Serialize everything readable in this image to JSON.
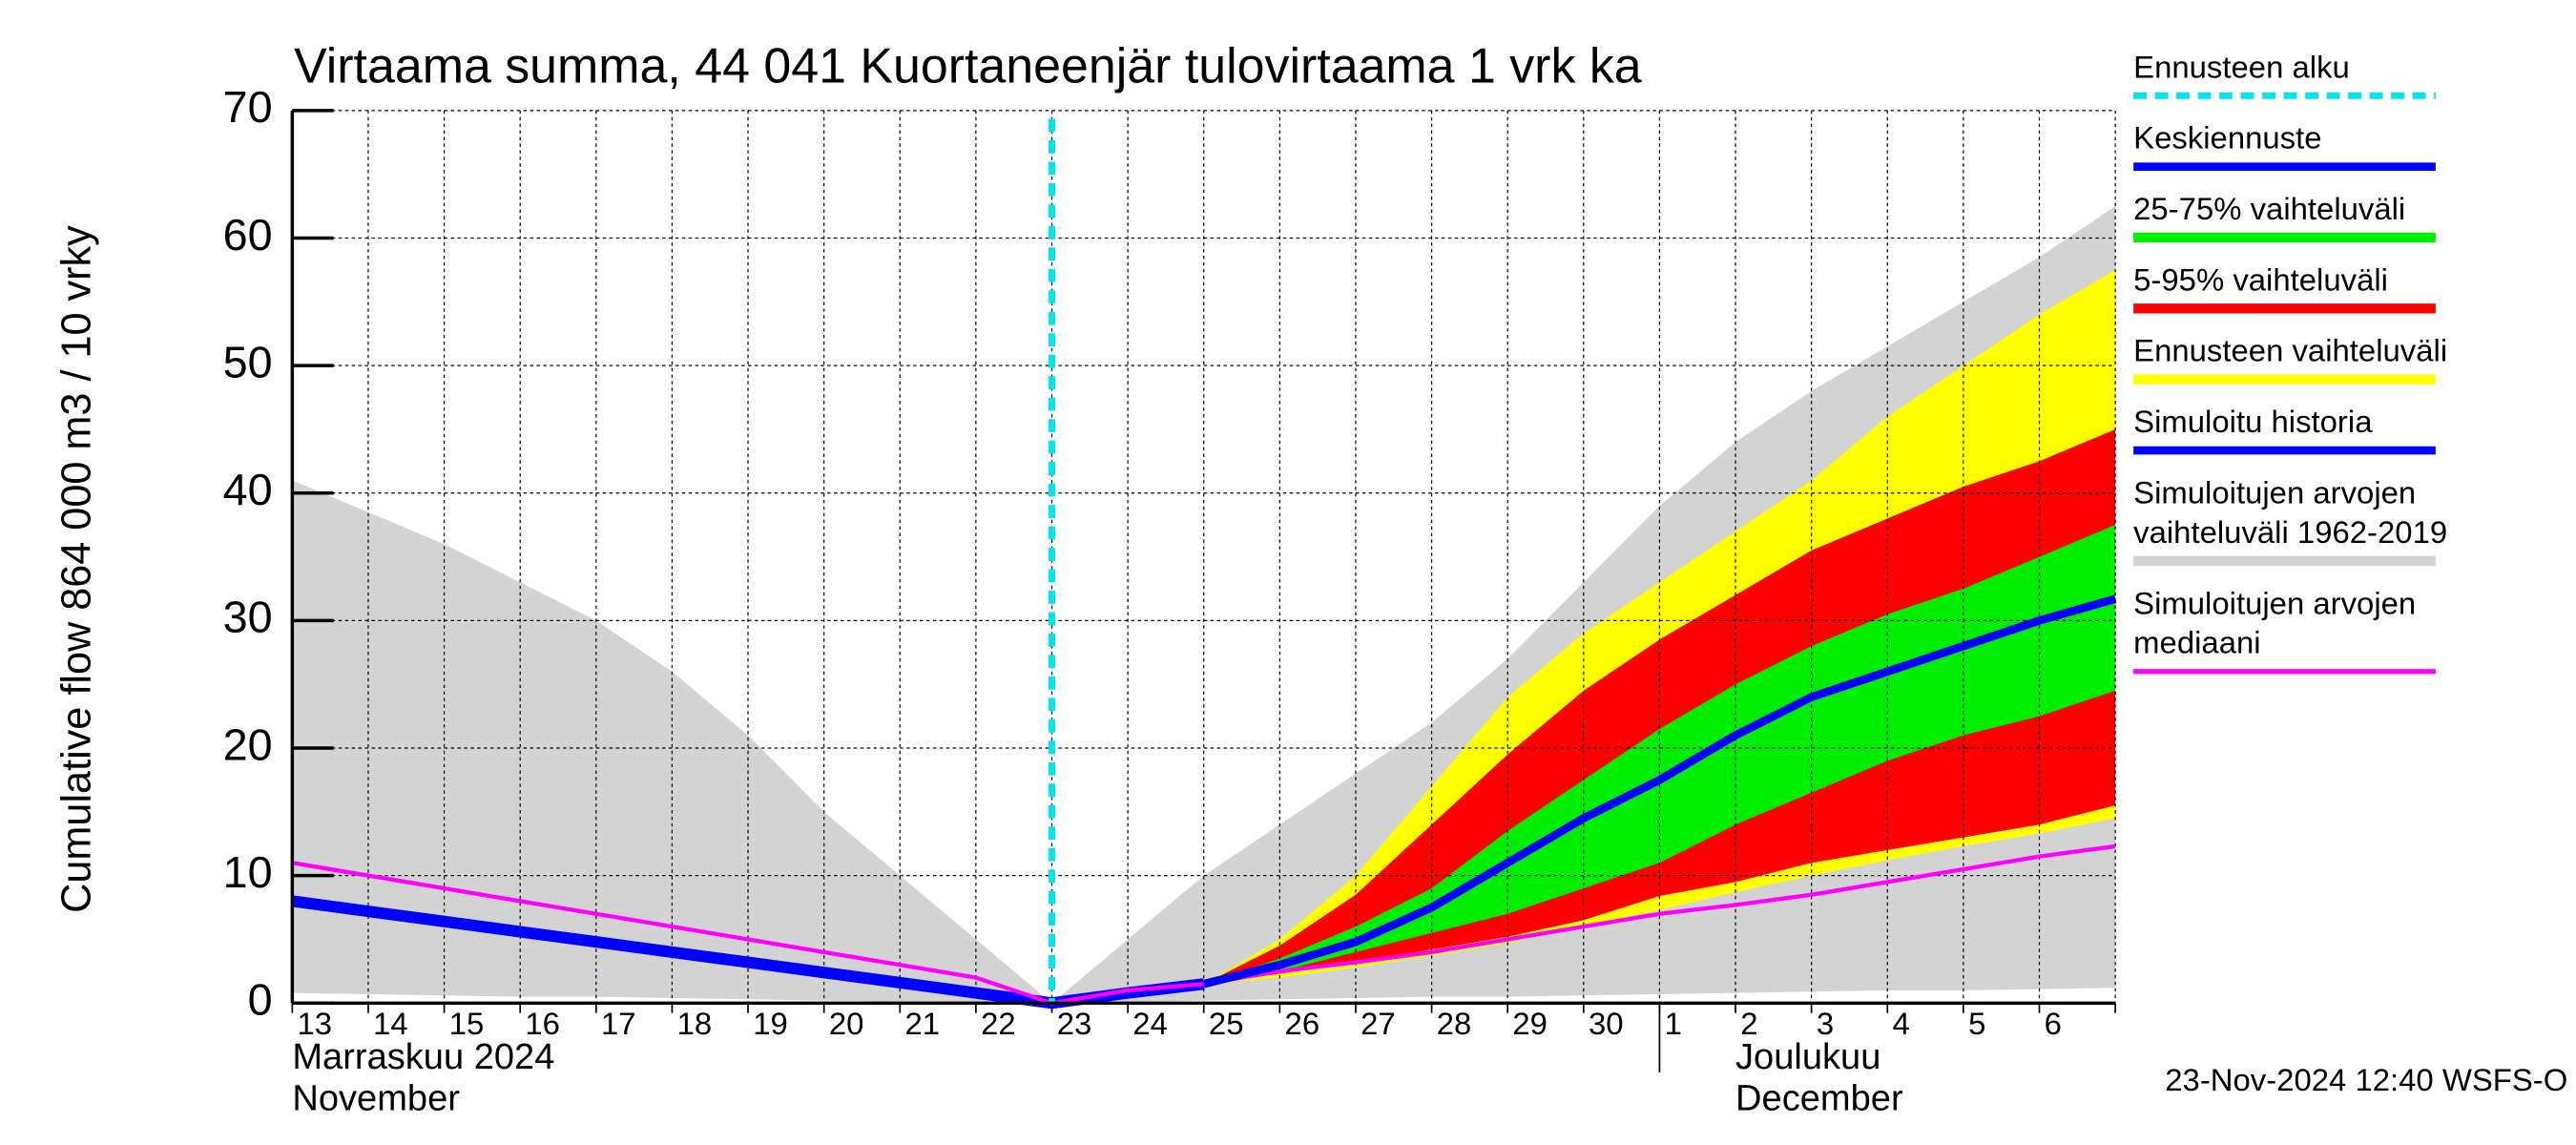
{
  "chart_data": {
    "type": "band",
    "title": "Virtaama summa, 44 041 Kuortaneenjär tulovirtaama 1 vrk ka",
    "ylabel": "Cumulative flow    864 000 m3 / 10 vrky",
    "footer": "23-Nov-2024 12:40 WSFS-O",
    "categories": [
      "13",
      "14",
      "15",
      "16",
      "17",
      "18",
      "19",
      "20",
      "21",
      "22",
      "23",
      "24",
      "25",
      "26",
      "27",
      "28",
      "29",
      "30",
      "1",
      "2",
      "3",
      "4",
      "5",
      "6",
      null
    ],
    "months": [
      {
        "label": [
          "Marraskuu 2024",
          "November"
        ],
        "at": "13"
      },
      {
        "label": [
          "Joulukuu",
          "December"
        ],
        "at": "2"
      }
    ],
    "ylim": [
      0,
      70
    ],
    "yticks": [
      0,
      10,
      20,
      30,
      40,
      50,
      60,
      70
    ],
    "grid": true,
    "markers": [
      {
        "name": "Ennusteen alku",
        "color": "#00e5ee",
        "at": "23"
      }
    ],
    "series": [
      {
        "name": [
          "Keskiennuste"
        ],
        "color": "#0000ff",
        "values": [
          null,
          null,
          null,
          null,
          null,
          null,
          null,
          null,
          null,
          null,
          null,
          null,
          1.5,
          3,
          4.8,
          7.5,
          11,
          14.5,
          17.5,
          21,
          24,
          26,
          28,
          30,
          31.7
        ]
      },
      {
        "name": [
          "25-75% vaihteluväli"
        ],
        "color": "#00ee00",
        "upper": [
          null,
          null,
          null,
          null,
          null,
          null,
          null,
          null,
          null,
          null,
          null,
          null,
          1.5,
          3.5,
          6,
          9,
          13.5,
          17.5,
          21.5,
          25,
          28,
          30.5,
          32.5,
          35,
          37.5
        ],
        "lower": [
          null,
          null,
          null,
          null,
          null,
          null,
          null,
          null,
          null,
          null,
          null,
          null,
          1.5,
          2.5,
          4,
          5.5,
          7,
          9,
          11,
          14,
          16.5,
          19,
          21,
          22.5,
          24.5
        ]
      },
      {
        "name": [
          "5-95% vaihteluväli"
        ],
        "color": "#ff0000",
        "upper": [
          null,
          null,
          null,
          null,
          null,
          null,
          null,
          null,
          null,
          null,
          null,
          null,
          1.5,
          4.5,
          8.5,
          14,
          19.5,
          24.5,
          28.5,
          32,
          35.5,
          38,
          40.5,
          42.5,
          45
        ],
        "lower": [
          null,
          null,
          null,
          null,
          null,
          null,
          null,
          null,
          null,
          null,
          null,
          null,
          1.5,
          2.3,
          3.2,
          4.2,
          5.2,
          6.5,
          8.4,
          9.5,
          11,
          12,
          13,
          14,
          15.5
        ]
      },
      {
        "name": [
          "Ennusteen vaihteluväli"
        ],
        "color": "#ffff00",
        "upper": [
          null,
          null,
          null,
          null,
          null,
          null,
          null,
          null,
          null,
          null,
          null,
          null,
          1.5,
          5,
          10,
          17,
          24,
          29,
          33,
          37,
          41,
          46,
          50,
          54,
          57.5
        ],
        "lower": [
          null,
          null,
          null,
          null,
          null,
          null,
          null,
          null,
          null,
          null,
          null,
          null,
          1.5,
          2,
          2.8,
          3.7,
          4.7,
          6,
          7.3,
          8.7,
          10,
          11.2,
          12.3,
          13.3,
          14.5
        ]
      },
      {
        "name": [
          "Simuloitu historia"
        ],
        "color": "#0000ff",
        "values": [
          8,
          7.2,
          6.4,
          5.6,
          4.8,
          4,
          3.2,
          2.4,
          1.6,
          0.8,
          0,
          0.8,
          1.5,
          null,
          null,
          null,
          null,
          null,
          null,
          null,
          null,
          null,
          null,
          null,
          null
        ]
      },
      {
        "name": [
          "Simuloitujen arvojen",
          "vaihteluväli 1962-2019"
        ],
        "color": "#d3d3d3",
        "upper": [
          41,
          38.5,
          36,
          33,
          30,
          26,
          21,
          15,
          10,
          5,
          0,
          5,
          10,
          14,
          18,
          22,
          27,
          33,
          39,
          44,
          48,
          51.5,
          55,
          58.5,
          62.5
        ],
        "lower": [
          0.8,
          0.7,
          0.6,
          0.5,
          0.5,
          0.4,
          0.3,
          0.2,
          0.1,
          0,
          0,
          0.1,
          0.2,
          0.3,
          0.4,
          0.5,
          0.5,
          0.6,
          0.7,
          0.8,
          0.9,
          1,
          1,
          1.1,
          1.2
        ]
      },
      {
        "name": [
          "Simuloitujen arvojen",
          "mediaani"
        ],
        "color": "#ff00ff",
        "values": [
          11,
          10,
          9,
          8,
          7,
          6,
          5,
          4,
          3,
          2,
          0,
          1,
          1.5,
          2.5,
          3.2,
          4,
          5,
          6,
          7,
          7.7,
          8.5,
          9.5,
          10.5,
          11.5,
          12.3
        ]
      }
    ]
  }
}
